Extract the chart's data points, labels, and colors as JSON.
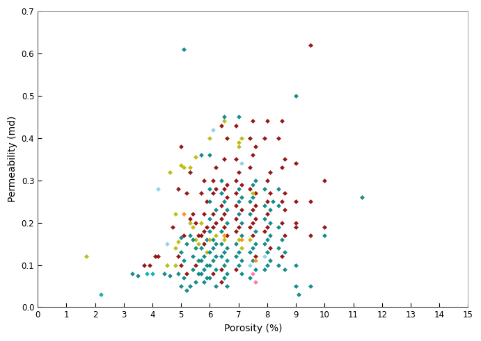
{
  "title": "",
  "xlabel": "Porosity (%)",
  "ylabel": "Permeability (md)",
  "xlim": [
    0,
    15
  ],
  "ylim": [
    0,
    0.7
  ],
  "xticks": [
    0,
    1,
    2,
    3,
    4,
    5,
    6,
    7,
    8,
    9,
    10,
    11,
    12,
    13,
    14,
    15
  ],
  "yticks": [
    0,
    0.1,
    0.2,
    0.3,
    0.4,
    0.5,
    0.6,
    0.7
  ],
  "background": "#ffffff",
  "points": [
    [
      1.7,
      0.12,
      "#b5b800"
    ],
    [
      2.2,
      0.03,
      "#00aaaa"
    ],
    [
      3.3,
      0.08,
      "#008080"
    ],
    [
      3.5,
      0.075,
      "#008080"
    ],
    [
      3.7,
      0.1,
      "#8b0000"
    ],
    [
      3.9,
      0.1,
      "#8b0000"
    ],
    [
      3.8,
      0.08,
      "#00aaaa"
    ],
    [
      4.0,
      0.08,
      "#00aaaa"
    ],
    [
      4.1,
      0.12,
      "#8b0000"
    ],
    [
      4.2,
      0.12,
      "#8b0000"
    ],
    [
      4.2,
      0.28,
      "#87ceeb"
    ],
    [
      4.5,
      0.15,
      "#87ceeb"
    ],
    [
      4.4,
      0.08,
      "#008080"
    ],
    [
      4.6,
      0.075,
      "#008080"
    ],
    [
      5.1,
      0.61,
      "#008080"
    ],
    [
      5.0,
      0.38,
      "#8b0000"
    ],
    [
      5.1,
      0.33,
      "#b5b800"
    ],
    [
      4.9,
      0.28,
      "#8b0000"
    ],
    [
      5.2,
      0.27,
      "#8b0000"
    ],
    [
      4.8,
      0.22,
      "#b5b800"
    ],
    [
      5.3,
      0.2,
      "#b5b800"
    ],
    [
      4.7,
      0.19,
      "#8b0000"
    ],
    [
      5.1,
      0.17,
      "#8b0000"
    ],
    [
      5.0,
      0.165,
      "#008080"
    ],
    [
      4.9,
      0.155,
      "#b5b800"
    ],
    [
      5.2,
      0.15,
      "#008080"
    ],
    [
      4.8,
      0.14,
      "#b5b800"
    ],
    [
      5.0,
      0.13,
      "#008080"
    ],
    [
      4.9,
      0.12,
      "#8b0000"
    ],
    [
      5.1,
      0.11,
      "#008080"
    ],
    [
      5.0,
      0.1,
      "#8b0000"
    ],
    [
      4.8,
      0.1,
      "#b5b800"
    ],
    [
      5.2,
      0.08,
      "#8b0000"
    ],
    [
      4.9,
      0.08,
      "#008080"
    ],
    [
      5.1,
      0.07,
      "#008080"
    ],
    [
      5.0,
      0.05,
      "#008080"
    ],
    [
      5.2,
      0.04,
      "#008080"
    ],
    [
      5.3,
      0.33,
      "#b5b800"
    ],
    [
      5.3,
      0.32,
      "#8b0000"
    ],
    [
      5.4,
      0.22,
      "#8b0000"
    ],
    [
      5.3,
      0.21,
      "#8b0000"
    ],
    [
      5.5,
      0.2,
      "#8b0000"
    ],
    [
      5.4,
      0.19,
      "#b5b800"
    ],
    [
      5.6,
      0.17,
      "#8b0000"
    ],
    [
      5.3,
      0.17,
      "#008080"
    ],
    [
      5.5,
      0.16,
      "#b5b800"
    ],
    [
      5.4,
      0.16,
      "#008080"
    ],
    [
      5.6,
      0.15,
      "#b5b800"
    ],
    [
      5.5,
      0.14,
      "#008080"
    ],
    [
      5.4,
      0.12,
      "#008080"
    ],
    [
      5.6,
      0.11,
      "#008080"
    ],
    [
      5.5,
      0.1,
      "#8b0000"
    ],
    [
      5.4,
      0.09,
      "#008080"
    ],
    [
      5.6,
      0.08,
      "#008080"
    ],
    [
      5.5,
      0.06,
      "#008080"
    ],
    [
      5.3,
      0.05,
      "#008080"
    ],
    [
      5.7,
      0.36,
      "#008080"
    ],
    [
      5.8,
      0.3,
      "#8b0000"
    ],
    [
      5.7,
      0.27,
      "#8b0000"
    ],
    [
      5.9,
      0.25,
      "#8b0000"
    ],
    [
      5.8,
      0.22,
      "#8b0000"
    ],
    [
      5.7,
      0.2,
      "#b5b800"
    ],
    [
      5.9,
      0.19,
      "#8b0000"
    ],
    [
      5.8,
      0.18,
      "#8b0000"
    ],
    [
      5.7,
      0.17,
      "#8b0000"
    ],
    [
      5.9,
      0.16,
      "#008080"
    ],
    [
      5.8,
      0.15,
      "#8b0000"
    ],
    [
      5.7,
      0.14,
      "#008080"
    ],
    [
      5.9,
      0.13,
      "#b5b800"
    ],
    [
      5.8,
      0.12,
      "#008080"
    ],
    [
      5.7,
      0.11,
      "#008080"
    ],
    [
      5.9,
      0.1,
      "#008080"
    ],
    [
      5.8,
      0.09,
      "#008080"
    ],
    [
      5.7,
      0.08,
      "#008080"
    ],
    [
      5.9,
      0.07,
      "#008080"
    ],
    [
      5.8,
      0.06,
      "#008080"
    ],
    [
      6.1,
      0.42,
      "#87ceeb"
    ],
    [
      6.0,
      0.36,
      "#008080"
    ],
    [
      6.2,
      0.33,
      "#8b0000"
    ],
    [
      6.1,
      0.3,
      "#8b0000"
    ],
    [
      6.0,
      0.28,
      "#008080"
    ],
    [
      6.2,
      0.28,
      "#8b0000"
    ],
    [
      6.1,
      0.27,
      "#8b0000"
    ],
    [
      6.0,
      0.25,
      "#008080"
    ],
    [
      6.2,
      0.23,
      "#008080"
    ],
    [
      6.1,
      0.22,
      "#8b0000"
    ],
    [
      6.0,
      0.21,
      "#008080"
    ],
    [
      6.2,
      0.2,
      "#8b0000"
    ],
    [
      6.1,
      0.19,
      "#8b0000"
    ],
    [
      6.0,
      0.18,
      "#008080"
    ],
    [
      6.2,
      0.17,
      "#b5b800"
    ],
    [
      6.1,
      0.16,
      "#008080"
    ],
    [
      6.0,
      0.16,
      "#b5b800"
    ],
    [
      6.2,
      0.15,
      "#008080"
    ],
    [
      6.1,
      0.14,
      "#008080"
    ],
    [
      6.0,
      0.13,
      "#008080"
    ],
    [
      6.2,
      0.12,
      "#008080"
    ],
    [
      6.1,
      0.11,
      "#008080"
    ],
    [
      6.0,
      0.1,
      "#008080"
    ],
    [
      6.2,
      0.09,
      "#008080"
    ],
    [
      6.1,
      0.08,
      "#8b0000"
    ],
    [
      6.0,
      0.07,
      "#008080"
    ],
    [
      6.2,
      0.05,
      "#008080"
    ],
    [
      6.5,
      0.45,
      "#008080"
    ],
    [
      6.4,
      0.43,
      "#8b0000"
    ],
    [
      6.6,
      0.4,
      "#8b0000"
    ],
    [
      6.5,
      0.35,
      "#8b0000"
    ],
    [
      6.4,
      0.3,
      "#008080"
    ],
    [
      6.6,
      0.29,
      "#8b0000"
    ],
    [
      6.5,
      0.28,
      "#8b0000"
    ],
    [
      6.4,
      0.27,
      "#008080"
    ],
    [
      6.6,
      0.26,
      "#8b0000"
    ],
    [
      6.5,
      0.25,
      "#008080"
    ],
    [
      6.4,
      0.24,
      "#8b0000"
    ],
    [
      6.6,
      0.23,
      "#008080"
    ],
    [
      6.5,
      0.22,
      "#8b0000"
    ],
    [
      6.4,
      0.21,
      "#8b0000"
    ],
    [
      6.6,
      0.2,
      "#008080"
    ],
    [
      6.5,
      0.19,
      "#8b0000"
    ],
    [
      6.4,
      0.18,
      "#008080"
    ],
    [
      6.6,
      0.17,
      "#8b0000"
    ],
    [
      6.5,
      0.16,
      "#b5b800"
    ],
    [
      6.4,
      0.15,
      "#008080"
    ],
    [
      6.6,
      0.14,
      "#008080"
    ],
    [
      6.5,
      0.13,
      "#008080"
    ],
    [
      6.4,
      0.12,
      "#008080"
    ],
    [
      6.6,
      0.11,
      "#008080"
    ],
    [
      6.5,
      0.1,
      "#008080"
    ],
    [
      6.4,
      0.09,
      "#8b0000"
    ],
    [
      6.6,
      0.08,
      "#008080"
    ],
    [
      6.5,
      0.07,
      "#008080"
    ],
    [
      6.4,
      0.06,
      "#8b0000"
    ],
    [
      6.6,
      0.05,
      "#008080"
    ],
    [
      7.0,
      0.45,
      "#008080"
    ],
    [
      6.9,
      0.43,
      "#8b0000"
    ],
    [
      7.1,
      0.4,
      "#b5b800"
    ],
    [
      7.0,
      0.38,
      "#b5b800"
    ],
    [
      6.9,
      0.35,
      "#8b0000"
    ],
    [
      7.1,
      0.34,
      "#87ceeb"
    ],
    [
      7.0,
      0.32,
      "#8b0000"
    ],
    [
      6.9,
      0.3,
      "#8b0000"
    ],
    [
      7.1,
      0.29,
      "#8b0000"
    ],
    [
      7.0,
      0.28,
      "#008080"
    ],
    [
      6.9,
      0.27,
      "#8b0000"
    ],
    [
      7.1,
      0.26,
      "#008080"
    ],
    [
      7.0,
      0.25,
      "#008080"
    ],
    [
      6.9,
      0.24,
      "#8b0000"
    ],
    [
      7.1,
      0.23,
      "#8b0000"
    ],
    [
      7.0,
      0.22,
      "#008080"
    ],
    [
      6.9,
      0.21,
      "#8b0000"
    ],
    [
      7.1,
      0.2,
      "#008080"
    ],
    [
      7.0,
      0.19,
      "#8b0000"
    ],
    [
      6.9,
      0.18,
      "#8b0000"
    ],
    [
      7.1,
      0.17,
      "#008080"
    ],
    [
      7.0,
      0.16,
      "#b5b800"
    ],
    [
      6.9,
      0.15,
      "#008080"
    ],
    [
      7.1,
      0.14,
      "#b5b800"
    ],
    [
      7.0,
      0.13,
      "#008080"
    ],
    [
      6.9,
      0.12,
      "#008080"
    ],
    [
      7.1,
      0.11,
      "#008080"
    ],
    [
      7.0,
      0.1,
      "#008080"
    ],
    [
      6.9,
      0.09,
      "#8b0000"
    ],
    [
      7.1,
      0.08,
      "#008080"
    ],
    [
      7.5,
      0.44,
      "#8b0000"
    ],
    [
      7.4,
      0.4,
      "#8b0000"
    ],
    [
      7.6,
      0.38,
      "#8b0000"
    ],
    [
      7.5,
      0.36,
      "#8b0000"
    ],
    [
      7.4,
      0.33,
      "#8b0000"
    ],
    [
      7.6,
      0.3,
      "#008080"
    ],
    [
      7.5,
      0.29,
      "#008080"
    ],
    [
      7.4,
      0.28,
      "#8b0000"
    ],
    [
      7.6,
      0.27,
      "#8b0000"
    ],
    [
      7.5,
      0.26,
      "#008080"
    ],
    [
      7.4,
      0.25,
      "#008080"
    ],
    [
      7.6,
      0.24,
      "#8b0000"
    ],
    [
      7.5,
      0.23,
      "#8b0000"
    ],
    [
      7.4,
      0.22,
      "#008080"
    ],
    [
      7.6,
      0.21,
      "#8b0000"
    ],
    [
      7.5,
      0.2,
      "#8b0000"
    ],
    [
      7.4,
      0.19,
      "#8b0000"
    ],
    [
      7.6,
      0.18,
      "#008080"
    ],
    [
      7.5,
      0.17,
      "#8b0000"
    ],
    [
      7.4,
      0.16,
      "#b5b800"
    ],
    [
      7.6,
      0.15,
      "#008080"
    ],
    [
      7.5,
      0.14,
      "#008080"
    ],
    [
      7.4,
      0.13,
      "#008080"
    ],
    [
      7.6,
      0.12,
      "#8b0000"
    ],
    [
      7.5,
      0.11,
      "#008080"
    ],
    [
      7.4,
      0.1,
      "#87ceeb"
    ],
    [
      7.6,
      0.09,
      "#008080"
    ],
    [
      7.5,
      0.08,
      "#ff69b4"
    ],
    [
      7.4,
      0.07,
      "#008080"
    ],
    [
      7.6,
      0.06,
      "#ff69b4"
    ],
    [
      8.0,
      0.44,
      "#8b0000"
    ],
    [
      7.9,
      0.4,
      "#8b0000"
    ],
    [
      8.1,
      0.32,
      "#8b0000"
    ],
    [
      8.0,
      0.3,
      "#8b0000"
    ],
    [
      7.9,
      0.28,
      "#008080"
    ],
    [
      8.1,
      0.27,
      "#8b0000"
    ],
    [
      8.0,
      0.25,
      "#8b0000"
    ],
    [
      7.9,
      0.24,
      "#008080"
    ],
    [
      8.1,
      0.23,
      "#008080"
    ],
    [
      8.0,
      0.22,
      "#8b0000"
    ],
    [
      7.9,
      0.21,
      "#008080"
    ],
    [
      8.1,
      0.2,
      "#008080"
    ],
    [
      8.0,
      0.19,
      "#8b0000"
    ],
    [
      7.9,
      0.18,
      "#8b0000"
    ],
    [
      8.1,
      0.17,
      "#008080"
    ],
    [
      8.0,
      0.16,
      "#008080"
    ],
    [
      7.9,
      0.15,
      "#008080"
    ],
    [
      8.1,
      0.14,
      "#8b0000"
    ],
    [
      8.0,
      0.13,
      "#008080"
    ],
    [
      7.9,
      0.12,
      "#87ceeb"
    ],
    [
      8.1,
      0.11,
      "#008080"
    ],
    [
      8.0,
      0.1,
      "#008080"
    ],
    [
      7.9,
      0.09,
      "#008080"
    ],
    [
      8.5,
      0.44,
      "#8b0000"
    ],
    [
      8.4,
      0.4,
      "#8b0000"
    ],
    [
      8.6,
      0.35,
      "#8b0000"
    ],
    [
      8.5,
      0.33,
      "#8b0000"
    ],
    [
      8.4,
      0.28,
      "#008080"
    ],
    [
      8.6,
      0.27,
      "#8b0000"
    ],
    [
      8.5,
      0.25,
      "#8b0000"
    ],
    [
      8.4,
      0.24,
      "#008080"
    ],
    [
      8.6,
      0.23,
      "#8b0000"
    ],
    [
      8.5,
      0.2,
      "#8b0000"
    ],
    [
      8.4,
      0.19,
      "#008080"
    ],
    [
      8.6,
      0.17,
      "#8b0000"
    ],
    [
      8.5,
      0.16,
      "#008080"
    ],
    [
      8.4,
      0.14,
      "#008080"
    ],
    [
      8.6,
      0.13,
      "#008080"
    ],
    [
      8.5,
      0.12,
      "#8b0000"
    ],
    [
      8.4,
      0.1,
      "#008080"
    ],
    [
      8.6,
      0.09,
      "#008080"
    ],
    [
      9.0,
      0.5,
      "#008080"
    ],
    [
      9.0,
      0.34,
      "#8b0000"
    ],
    [
      9.0,
      0.25,
      "#8b0000"
    ],
    [
      9.0,
      0.2,
      "#8b0000"
    ],
    [
      9.0,
      0.19,
      "#8b0000"
    ],
    [
      9.0,
      0.1,
      "#008080"
    ],
    [
      9.0,
      0.05,
      "#008080"
    ],
    [
      9.5,
      0.62,
      "#8b0000"
    ],
    [
      9.5,
      0.25,
      "#8b0000"
    ],
    [
      9.5,
      0.17,
      "#8b0000"
    ],
    [
      9.5,
      0.05,
      "#008080"
    ],
    [
      10.0,
      0.3,
      "#8b0000"
    ],
    [
      10.0,
      0.19,
      "#8b0000"
    ],
    [
      10.0,
      0.17,
      "#008080"
    ],
    [
      11.3,
      0.26,
      "#008080"
    ],
    [
      5.0,
      0.335,
      "#b5b800"
    ],
    [
      5.5,
      0.355,
      "#b5b800"
    ],
    [
      6.0,
      0.4,
      "#b5b800"
    ],
    [
      6.5,
      0.44,
      "#b5b800"
    ],
    [
      7.0,
      0.39,
      "#b5b800"
    ],
    [
      7.5,
      0.27,
      "#b5b800"
    ],
    [
      8.2,
      0.25,
      "#008080"
    ],
    [
      9.1,
      0.03,
      "#008080"
    ],
    [
      4.5,
      0.1,
      "#b5b800"
    ],
    [
      4.6,
      0.32,
      "#b5b800"
    ],
    [
      5.1,
      0.22,
      "#ff8c00"
    ],
    [
      6.5,
      0.17,
      "#ff8c00"
    ],
    [
      7.1,
      0.16,
      "#ff8c00"
    ],
    [
      7.6,
      0.11,
      "#ff8c00"
    ]
  ]
}
